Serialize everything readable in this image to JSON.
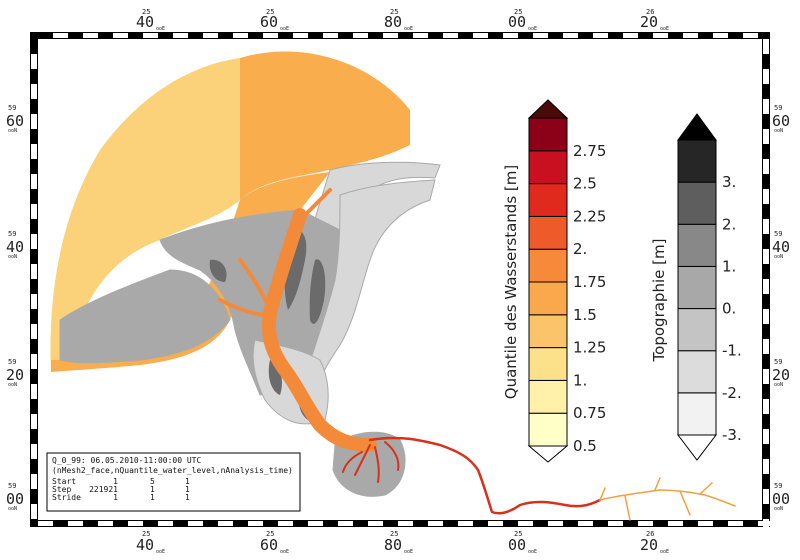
{
  "frame": {
    "top_ticks": [
      {
        "small": "25",
        "big": "40",
        "mini": "ooE"
      },
      {
        "small": "25",
        "big": "60",
        "mini": "ooE"
      },
      {
        "small": "25",
        "big": "80",
        "mini": "ooE"
      },
      {
        "small": "25",
        "big": "00",
        "mini": "ooE"
      },
      {
        "small": "26",
        "big": "20",
        "mini": "ooE"
      }
    ],
    "bottom_ticks": [
      {
        "small": "25",
        "big": "40",
        "mini": "ooE"
      },
      {
        "small": "25",
        "big": "60",
        "mini": "ooE"
      },
      {
        "small": "25",
        "big": "80",
        "mini": "ooE"
      },
      {
        "small": "25",
        "big": "00",
        "mini": "ooE"
      },
      {
        "small": "26",
        "big": "20",
        "mini": "ooE"
      }
    ],
    "left_ticks": [
      {
        "small": "59",
        "big": "60",
        "mini": "ooN"
      },
      {
        "small": "59",
        "big": "40",
        "mini": "ooN"
      },
      {
        "small": "59",
        "big": "20",
        "mini": "ooN"
      },
      {
        "small": "59",
        "big": "00",
        "mini": "ooN"
      }
    ],
    "right_ticks": [
      {
        "small": "59",
        "big": "60",
        "mini": "ooN"
      },
      {
        "small": "59",
        "big": "40",
        "mini": "ooN"
      },
      {
        "small": "59",
        "big": "20",
        "mini": "ooN"
      },
      {
        "small": "59",
        "big": "00",
        "mini": "ooN"
      }
    ]
  },
  "colorbar_water": {
    "title": "Quantile des Wasserstands [m]",
    "labels": [
      "0.5",
      "0.75",
      "1.",
      "1.25",
      "1.5",
      "1.75",
      "2.",
      "2.25",
      "2.5",
      "2.75"
    ],
    "colors": [
      "#ffffc8",
      "#fff0aa",
      "#fde08a",
      "#fbc46a",
      "#f9a94c",
      "#f7893a",
      "#ee5a2a",
      "#e02a1e",
      "#c81020",
      "#8c0018"
    ],
    "arrow_top_color": "#4a0a0a"
  },
  "colorbar_topo": {
    "title": "Topographie [m]",
    "labels": [
      "-3.",
      "-2.",
      "-1.",
      "0.",
      "1.",
      "2.",
      "3."
    ],
    "colors": [
      "#f2f2f2",
      "#dcdcdc",
      "#c4c4c4",
      "#a8a8a8",
      "#888888",
      "#5e5e5e",
      "#262626"
    ],
    "arrow_top_color": "#000000",
    "arrow_bottom_color": "#ffffff"
  },
  "info_box": {
    "line1": "Q_0_99: 06.05.2010-11:00:00 UTC",
    "line2": "(nMesh2_face,nQuantile_water_level,nAnalysis_time)",
    "rows": [
      {
        "name": "Start",
        "a": "1",
        "b": "5",
        "c": "1"
      },
      {
        "name": "Step",
        "a": "221921",
        "b": "1",
        "c": "1"
      },
      {
        "name": "Stride",
        "a": "1",
        "b": "1",
        "c": "1"
      }
    ]
  },
  "map_colors": {
    "outer_sea": "#fbd27a",
    "sea": "#f9ad4c",
    "channel": "#f28a3a",
    "river": "#d8301c",
    "river_far": "#f0a040",
    "land_light": "#d8d8d8",
    "land_mid": "#a9a9a9",
    "land_dark": "#6b6b6b"
  }
}
